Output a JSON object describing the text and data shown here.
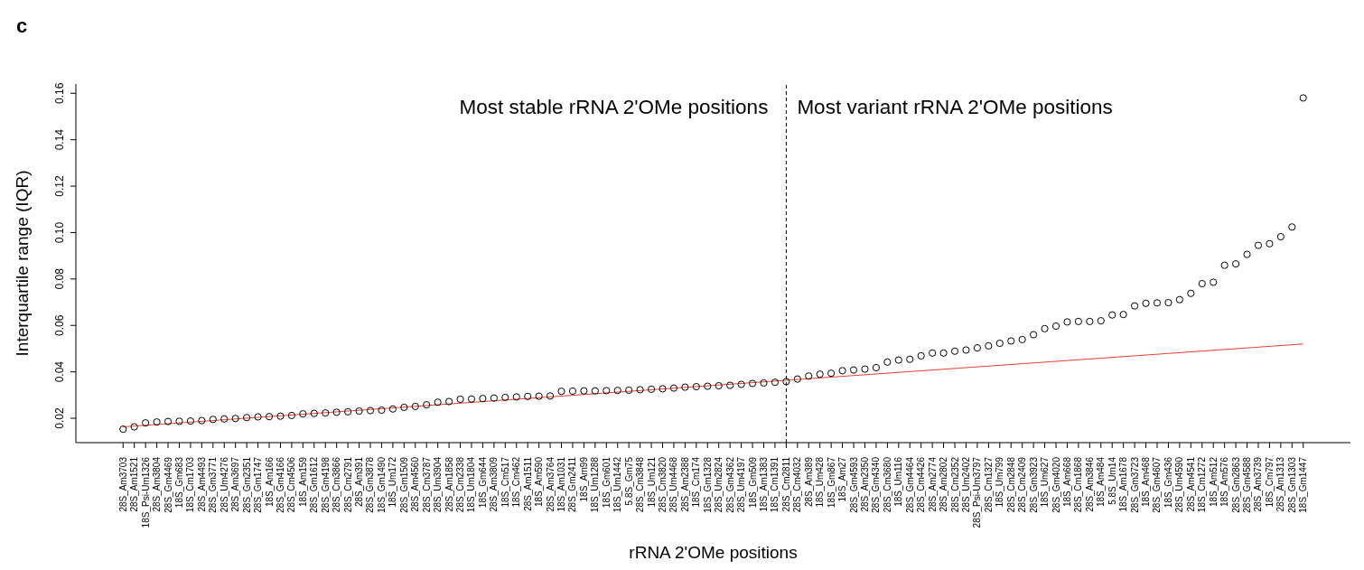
{
  "chart_data": {
    "type": "scatter",
    "title": "c",
    "xlabel": "rRNA 2'OMe positions",
    "ylabel": "Interquartile range (IQR)",
    "categories": [
      "28S_Am3703",
      "28S_Am1521",
      "18S_Psi-Um1326",
      "28S_Am3804",
      "28S_Gm4469",
      "18S_Gm683",
      "18S_Cm1703",
      "28S_Am4493",
      "28S_Gm3771",
      "28S_Um4276",
      "28S_Am3697",
      "28S_Gm2351",
      "28S_Gm1747",
      "18S_Am166",
      "28S_Gm4166",
      "28S_Cm4506",
      "18S_Am159",
      "28S_Gm1612",
      "28S_Gm4198",
      "28S_Cm3866",
      "28S_Cm2791",
      "28S_Am391",
      "28S_Gm3878",
      "18S_Gm1490",
      "18S_Um172",
      "28S_Gm1509",
      "28S_Am4560",
      "28S_Cm3787",
      "28S_Um3904",
      "28S_Am1858",
      "28S_Cm2338",
      "18S_Um1804",
      "18S_Gm644",
      "28S_Am3809",
      "18S_Cm517",
      "18S_Cm462",
      "28S_Am1511",
      "18S_Am590",
      "28S_Am3764",
      "18S_Am1031",
      "28S_Gm2411",
      "18S_Am99",
      "18S_Um1288",
      "18S_Gm601",
      "18S_Um1442",
      "5.8S_Gm75",
      "28S_Cm3848",
      "18S_Um121",
      "28S_Cm3820",
      "28S_Um4468",
      "28S_Am2388",
      "18S_Cm174",
      "18S_Gm1328",
      "28S_Um2824",
      "28S_Gm4362",
      "28S_Um4197",
      "18S_Gm509",
      "18S_Am1383",
      "18S_Cm1391",
      "28S_Cm2811",
      "28S_Cm4032",
      "28S_Am389",
      "18S_Um428",
      "18S_Gm867",
      "18S_Am27",
      "28S_Gm4593",
      "28S_Am2350",
      "28S_Gm4340",
      "28S_Cm3680",
      "18S_Um116",
      "28S_Gm4464",
      "28S_Cm4426",
      "28S_Am2774",
      "28S_Am2802",
      "28S_Cm2352",
      "28S_Um2402",
      "28S_Psi-Um3797",
      "28S_Cm1327",
      "18S_Um799",
      "28S_Cm2848",
      "28S_Cm2409",
      "28S_Gm3923",
      "18S_Um627",
      "28S_Gm4020",
      "18S_Am668",
      "28S_Cm1868",
      "28S_Am3846",
      "18S_Am484",
      "5.8S_Um14",
      "18S_Am1678",
      "28S_Gm3723",
      "18S_Am468",
      "28S_Gm4607",
      "18S_Gm436",
      "28S_Um4590",
      "28S_Am4541",
      "18S_Cm1272",
      "18S_Am512",
      "18S_Am576",
      "28S_Gm2863",
      "28S_Gm4588",
      "28S_Am3739",
      "18S_Cm797",
      "28S_Am1313",
      "28S_Gm1303",
      "18S_Gm1447"
    ],
    "series": [
      {
        "marker": "circle",
        "color": "#000000",
        "values": [
          0.0153,
          0.0163,
          0.018,
          0.0184,
          0.0186,
          0.0187,
          0.0188,
          0.019,
          0.0195,
          0.0197,
          0.0199,
          0.0203,
          0.0206,
          0.0207,
          0.0209,
          0.0212,
          0.0219,
          0.0221,
          0.0223,
          0.0226,
          0.0228,
          0.0231,
          0.0233,
          0.0235,
          0.024,
          0.0247,
          0.0251,
          0.0258,
          0.0269,
          0.0272,
          0.0282,
          0.0283,
          0.0285,
          0.0287,
          0.029,
          0.0292,
          0.0294,
          0.0295,
          0.0296,
          0.0316,
          0.0317,
          0.0318,
          0.0318,
          0.0319,
          0.032,
          0.0321,
          0.0323,
          0.0325,
          0.0327,
          0.033,
          0.0334,
          0.0336,
          0.0338,
          0.034,
          0.0342,
          0.0346,
          0.035,
          0.0352,
          0.0355,
          0.0358,
          0.0369,
          0.0382,
          0.039,
          0.0394,
          0.0405,
          0.0408,
          0.0412,
          0.0418,
          0.0442,
          0.0451,
          0.0454,
          0.0469,
          0.0481,
          0.0481,
          0.0489,
          0.0494,
          0.0503,
          0.0512,
          0.0523,
          0.0533,
          0.0539,
          0.056,
          0.0586,
          0.0597,
          0.0615,
          0.0617,
          0.0617,
          0.062,
          0.0645,
          0.0647,
          0.0684,
          0.0695,
          0.0697,
          0.0698,
          0.0711,
          0.0738,
          0.078,
          0.0786,
          0.0859,
          0.0865,
          0.0906,
          0.0945,
          0.0952,
          0.0982,
          0.1024,
          0.158
        ]
      },
      {
        "type": "line",
        "color": "#e8412f",
        "x": [
          "28S_Am3703",
          "18S_Gm1447"
        ],
        "values": [
          0.0163,
          0.052
        ]
      }
    ],
    "ylim": [
      0.0095,
      0.164
    ],
    "yticks": [
      0.02,
      0.04,
      0.06,
      0.08,
      {
        "value": 0.1,
        "label": "0.10"
      },
      0.12,
      0.14,
      0.16
    ],
    "line_style": "solid",
    "ref_lines": [
      {
        "axis": "x",
        "value": "28S_Cm2811",
        "line_style": "dashed",
        "color": "#000000"
      }
    ],
    "annotations": [
      "Most stable rRNA 2'OMe positions",
      "Most variant rRNA 2'OMe positions"
    ]
  }
}
